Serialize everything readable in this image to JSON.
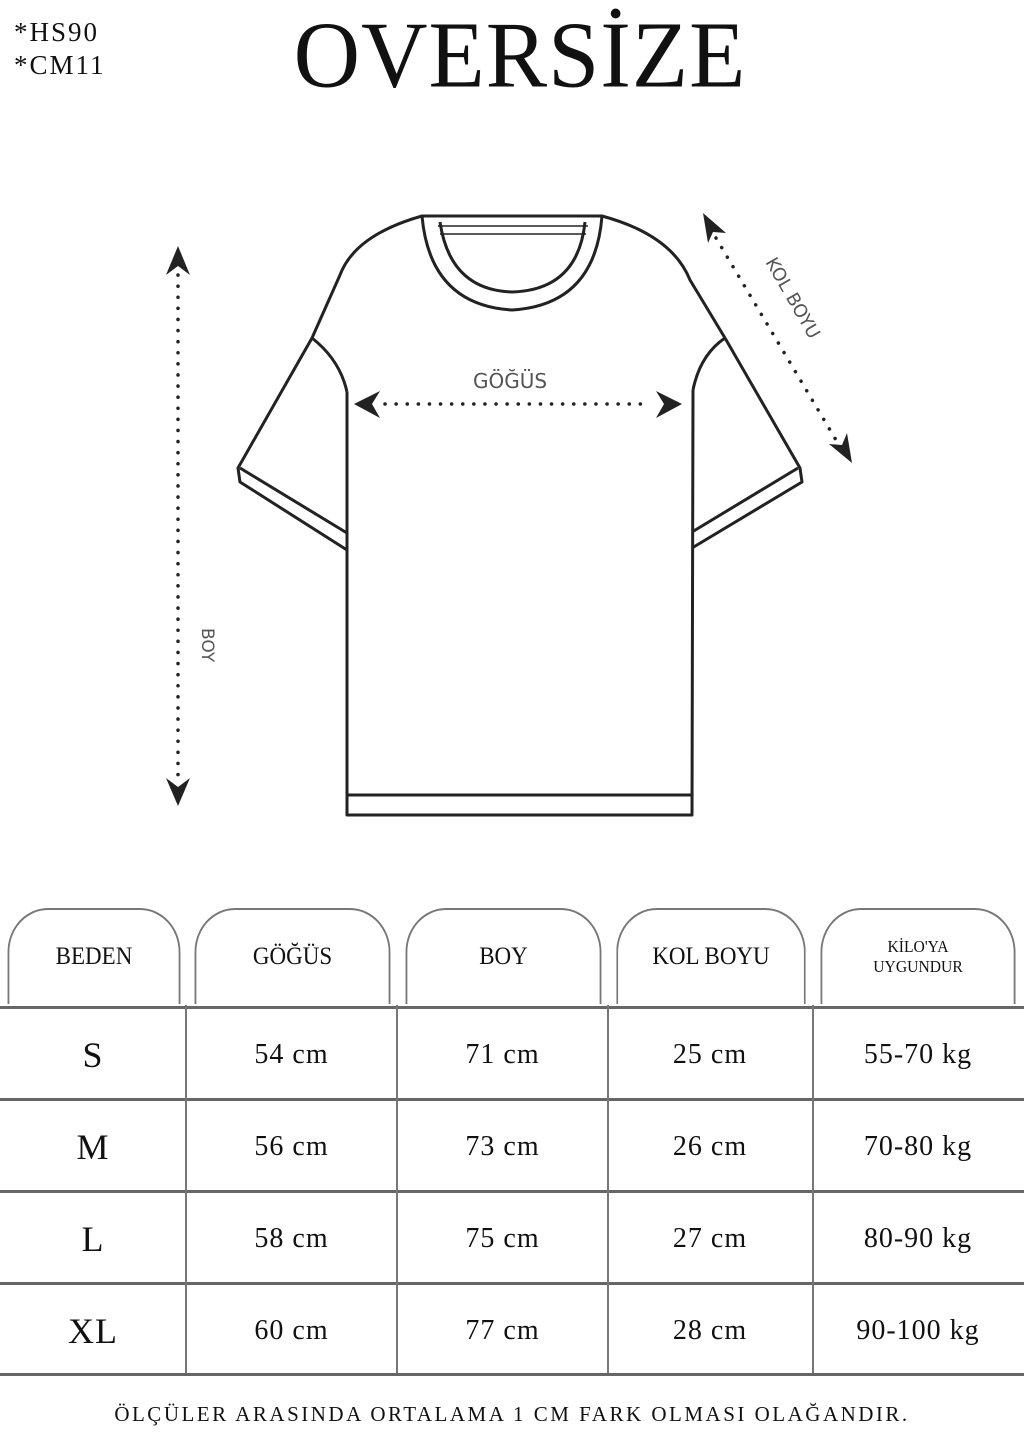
{
  "codes": [
    "*HS90",
    "*CM11"
  ],
  "title": "OVERSİZE",
  "diagram": {
    "labels": {
      "chest": "GÖĞÜS",
      "sleeve": "KOL BOYU",
      "length": "BOY"
    }
  },
  "table": {
    "headers": [
      "BEDEN",
      "GÖĞÜS",
      "BOY",
      "KOL BOYU",
      "KİLO'YA UYGUNDUR"
    ],
    "rows": [
      [
        "S",
        "54 cm",
        "71 cm",
        "25  cm",
        "55-70 kg"
      ],
      [
        "M",
        "56 cm",
        "73 cm",
        "26 cm",
        "70-80 kg"
      ],
      [
        "L",
        "58 cm",
        "75 cm",
        "27 cm",
        "80-90 kg"
      ],
      [
        "XL",
        "60 cm",
        "77 cm",
        "28 cm",
        "90-100 kg"
      ]
    ]
  },
  "footer": "ÖLÇÜLER ARASINDA ORTALAMA 1 CM FARK OLMASI OLAĞANDIR."
}
